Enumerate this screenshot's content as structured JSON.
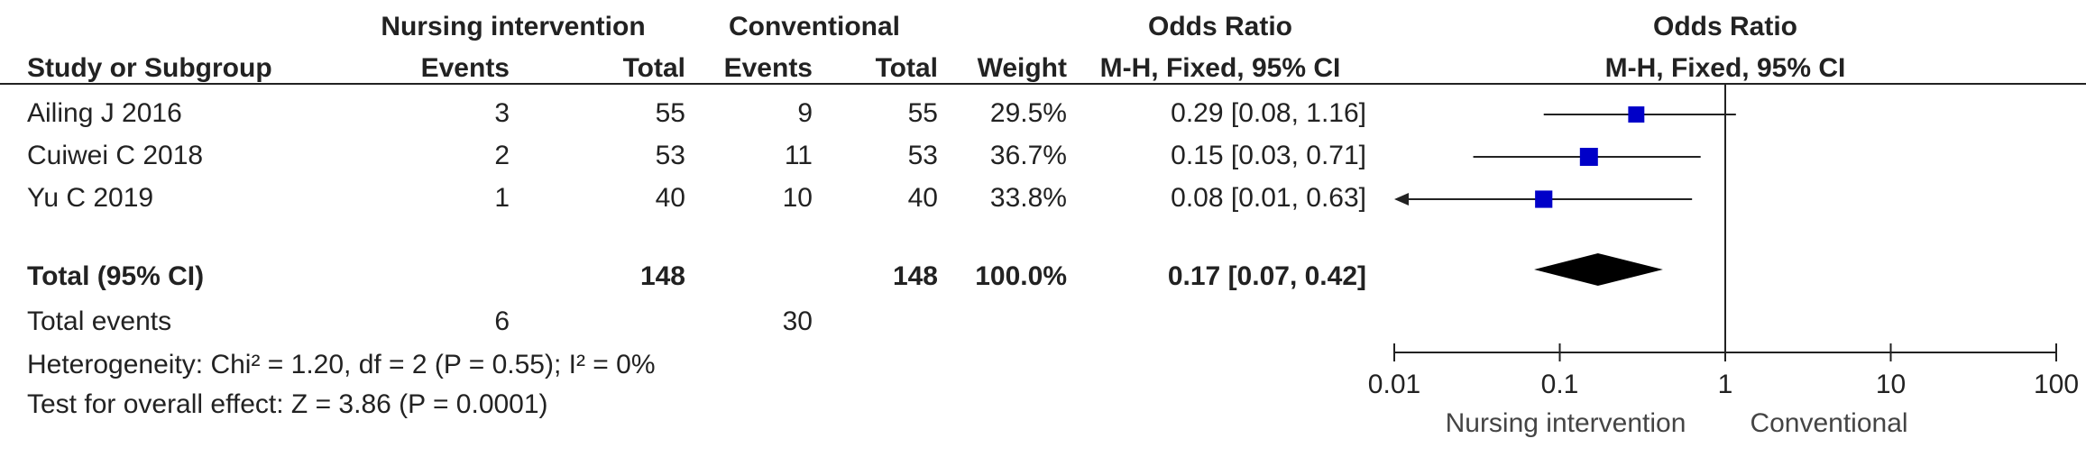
{
  "headers": {
    "group1": "Nursing intervention",
    "group2": "Conventional",
    "or_title": "Odds Ratio",
    "study": "Study or Subgroup",
    "events1": "Events",
    "total1": "Total",
    "events2": "Events",
    "total2": "Total",
    "weight": "Weight",
    "method": "M-H, Fixed, 95% CI"
  },
  "chart_data": {
    "type": "forest",
    "title": "Odds Ratio",
    "subtitle": "M-H, Fixed, 95% CI",
    "xscale": "log",
    "xlim": [
      0.01,
      100
    ],
    "xticks": [
      0.01,
      0.1,
      1,
      10,
      100
    ],
    "xlabel_left": "Nursing intervention",
    "xlabel_right": "Conventional",
    "color": "#0000c8",
    "studies": [
      {
        "name": "Ailing J 2016",
        "events1": 3,
        "total1": 55,
        "events2": 9,
        "total2": 55,
        "weight": 29.5,
        "weight_label": "29.5%",
        "or": 0.29,
        "ci_low": 0.08,
        "ci_high": 1.16,
        "or_label": "0.29 [0.08, 1.16]"
      },
      {
        "name": "Cuiwei C 2018",
        "events1": 2,
        "total1": 53,
        "events2": 11,
        "total2": 53,
        "weight": 36.7,
        "weight_label": "36.7%",
        "or": 0.15,
        "ci_low": 0.03,
        "ci_high": 0.71,
        "or_label": "0.15 [0.03, 0.71]"
      },
      {
        "name": "Yu C 2019",
        "events1": 1,
        "total1": 40,
        "events2": 10,
        "total2": 40,
        "weight": 33.8,
        "weight_label": "33.8%",
        "or": 0.08,
        "ci_low": 0.01,
        "ci_high": 0.63,
        "or_label": "0.08 [0.01, 0.63]"
      }
    ],
    "total": {
      "name": "Total (95% CI)",
      "total1": 148,
      "total2": 148,
      "weight": 100.0,
      "weight_label": "100.0%",
      "or": 0.17,
      "ci_low": 0.07,
      "ci_high": 0.42,
      "or_label": "0.17 [0.07, 0.42]"
    }
  },
  "footer": {
    "events_label": "Total events",
    "events1": 6,
    "events2": 30,
    "heterogeneity": "Heterogeneity: Chi² = 1.20, df = 2 (P = 0.55); I² = 0%",
    "overall": "Test for overall effect: Z = 3.86 (P = 0.0001)"
  }
}
